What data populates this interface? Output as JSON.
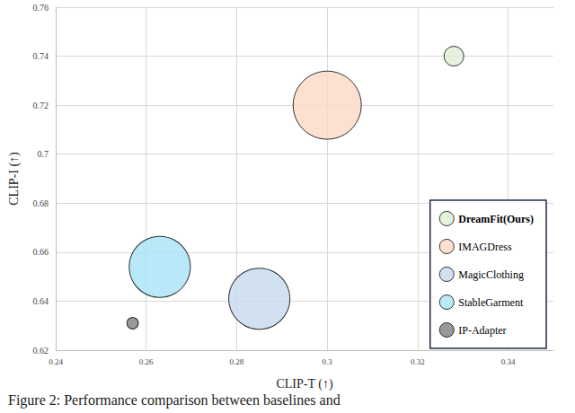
{
  "chart_data": {
    "type": "scatter",
    "xlabel": "CLIP-T (↑)",
    "ylabel": "CLIP-I (↑)",
    "caption": "Figure 2: Performance comparison between baselines and",
    "xlim": [
      0.24,
      0.35
    ],
    "xticks": [
      0.24,
      0.26,
      0.28,
      0.3,
      0.32,
      0.34
    ],
    "ylim": [
      0.62,
      0.76
    ],
    "yticks": [
      0.62,
      0.64,
      0.66,
      0.68,
      0.7,
      0.72,
      0.74,
      0.76
    ],
    "grid": true,
    "legend": "lower right",
    "marker": "circle",
    "series": [
      {
        "name": "DreamFit(Ours)",
        "color": "#dcf0d4",
        "x": [
          0.328
        ],
        "values": [
          0.74
        ],
        "sizes": [
          1.2
        ]
      },
      {
        "name": "IMAGDress",
        "color": "#fbd9c6",
        "x": [
          0.3
        ],
        "values": [
          0.72
        ],
        "sizes": [
          14.4
        ]
      },
      {
        "name": "MagicClothing",
        "color": "#c6d9ef",
        "x": [
          0.285
        ],
        "values": [
          0.641
        ],
        "sizes": [
          11.6
        ]
      },
      {
        "name": "StableGarment",
        "color": "#a8e2f7",
        "x": [
          0.263
        ],
        "values": [
          0.654
        ],
        "sizes": [
          11.6
        ]
      },
      {
        "name": "IP-Adapter",
        "color": "#7f7f7f",
        "x": [
          0.257
        ],
        "values": [
          0.631
        ],
        "sizes": [
          0.4
        ]
      }
    ]
  }
}
